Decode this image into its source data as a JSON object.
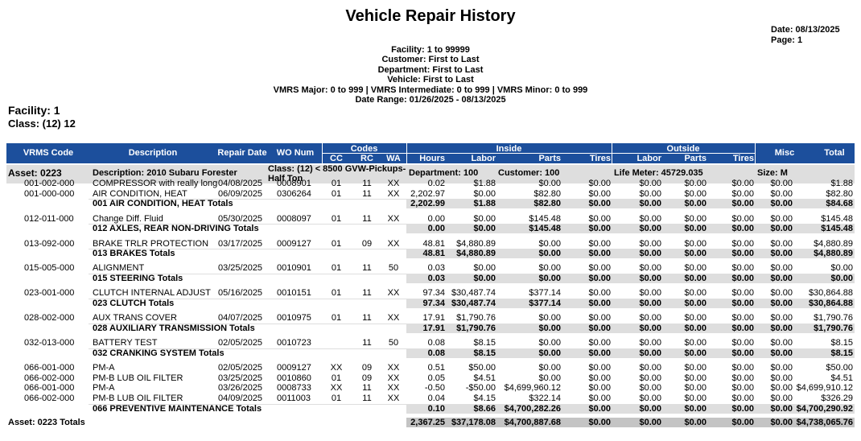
{
  "header": {
    "title": "Vehicle Repair History",
    "date": "Date: 08/13/2025",
    "page": "Page: 1",
    "parameters": [
      "Facility: 1 to 99999",
      "Customer: First to Last",
      "Department: First to Last",
      "Vehicle: First to Last",
      "VMRS Major: 0 to 999 | VMRS Intermediate: 0 to 999 | VMRS Minor: 0 to 999",
      "Date Range: 01/26/2025 - 08/13/2025"
    ]
  },
  "facility": "Facility: 1",
  "class": "Class: (12) 12",
  "table": {
    "single_headers": [
      "VRMS Code",
      "Description",
      "Repair Date",
      "WO Num",
      "Misc",
      "Total"
    ],
    "group_headers": [
      {
        "label": "Codes",
        "columns": [
          "CC",
          "RC",
          "WA"
        ]
      },
      {
        "label": "Inside",
        "columns": [
          "Hours",
          "Labor",
          "Parts",
          "Tires"
        ]
      },
      {
        "label": "Outside",
        "columns": [
          "Labor",
          "Parts",
          "Tires"
        ]
      }
    ],
    "asset": {
      "asset": "Asset: 0223",
      "description": "Description: 2010 Subaru Forester",
      "class": "Class: (12) < 8500 GVW-Pickups-Half Ton",
      "department": "Department: 100",
      "customer": "Customer: 100",
      "life_meter": "Life Meter: 45729.035",
      "size": "Size: M"
    },
    "groups": [
      {
        "rows": [
          [
            "001-002-000",
            "COMPRESSOR with really long",
            "04/08/2025",
            "0008901",
            "01",
            "11",
            "XX",
            "0.02",
            "$1.88",
            "$0.00",
            "$0.00",
            "$0.00",
            "$0.00",
            "$0.00",
            "$0.00",
            "$1.88"
          ],
          [
            "001-000-000",
            "AIR CONDITION, HEAT",
            "06/09/2025",
            "0306264",
            "01",
            "11",
            "XX",
            "2,202.97",
            "$0.00",
            "$82.80",
            "$0.00",
            "$0.00",
            "$0.00",
            "$0.00",
            "$0.00",
            "$82.80"
          ]
        ],
        "totals": {
          "label": "001 AIR CONDITION, HEAT Totals",
          "values": [
            "2,202.99",
            "$1.88",
            "$82.80",
            "$0.00",
            "$0.00",
            "$0.00",
            "$0.00",
            "$0.00",
            "$84.68"
          ]
        }
      },
      {
        "rows": [
          [
            "012-011-000",
            "Change Diff. Fluid",
            "05/30/2025",
            "0008097",
            "01",
            "11",
            "XX",
            "0.00",
            "$0.00",
            "$145.48",
            "$0.00",
            "$0.00",
            "$0.00",
            "$0.00",
            "$0.00",
            "$145.48"
          ]
        ],
        "totals": {
          "label": "012 AXLES, REAR NON-DRIVING Totals",
          "values": [
            "0.00",
            "$0.00",
            "$145.48",
            "$0.00",
            "$0.00",
            "$0.00",
            "$0.00",
            "$0.00",
            "$145.48"
          ]
        }
      },
      {
        "rows": [
          [
            "013-092-000",
            "BRAKE TRLR PROTECTION",
            "03/17/2025",
            "0009127",
            "01",
            "09",
            "XX",
            "48.81",
            "$4,880.89",
            "$0.00",
            "$0.00",
            "$0.00",
            "$0.00",
            "$0.00",
            "$0.00",
            "$4,880.89"
          ]
        ],
        "totals": {
          "label": "013 BRAKES Totals",
          "values": [
            "48.81",
            "$4,880.89",
            "$0.00",
            "$0.00",
            "$0.00",
            "$0.00",
            "$0.00",
            "$0.00",
            "$4,880.89"
          ]
        }
      },
      {
        "rows": [
          [
            "015-005-000",
            "ALIGNMENT",
            "03/25/2025",
            "0010901",
            "01",
            "11",
            "50",
            "0.03",
            "$0.00",
            "$0.00",
            "$0.00",
            "$0.00",
            "$0.00",
            "$0.00",
            "$0.00",
            "$0.00"
          ]
        ],
        "totals": {
          "label": "015 STEERING Totals",
          "values": [
            "0.03",
            "$0.00",
            "$0.00",
            "$0.00",
            "$0.00",
            "$0.00",
            "$0.00",
            "$0.00",
            "$0.00"
          ]
        }
      },
      {
        "rows": [
          [
            "023-001-000",
            "CLUTCH INTERNAL ADJUST",
            "05/16/2025",
            "0010151",
            "01",
            "11",
            "XX",
            "97.34",
            "$30,487.74",
            "$377.14",
            "$0.00",
            "$0.00",
            "$0.00",
            "$0.00",
            "$0.00",
            "$30,864.88"
          ]
        ],
        "totals": {
          "label": "023 CLUTCH Totals",
          "values": [
            "97.34",
            "$30,487.74",
            "$377.14",
            "$0.00",
            "$0.00",
            "$0.00",
            "$0.00",
            "$0.00",
            "$30,864.88"
          ]
        }
      },
      {
        "rows": [
          [
            "028-002-000",
            "AUX TRANS COVER",
            "04/07/2025",
            "0010975",
            "01",
            "11",
            "XX",
            "17.91",
            "$1,790.76",
            "$0.00",
            "$0.00",
            "$0.00",
            "$0.00",
            "$0.00",
            "$0.00",
            "$1,790.76"
          ]
        ],
        "totals": {
          "label": "028 AUXILIARY TRANSMISSION Totals",
          "values": [
            "17.91",
            "$1,790.76",
            "$0.00",
            "$0.00",
            "$0.00",
            "$0.00",
            "$0.00",
            "$0.00",
            "$1,790.76"
          ]
        }
      },
      {
        "rows": [
          [
            "032-013-000",
            "BATTERY TEST",
            "02/05/2025",
            "0010723",
            null,
            "11",
            "50",
            "0.08",
            "$8.15",
            "$0.00",
            "$0.00",
            "$0.00",
            "$0.00",
            "$0.00",
            "$0.00",
            "$8.15"
          ]
        ],
        "totals": {
          "label": "032 CRANKING SYSTEM Totals",
          "values": [
            "0.08",
            "$8.15",
            "$0.00",
            "$0.00",
            "$0.00",
            "$0.00",
            "$0.00",
            "$0.00",
            "$8.15"
          ]
        }
      },
      {
        "rows": [
          [
            "066-001-000",
            "PM-A",
            "02/05/2025",
            "0009127",
            "XX",
            "09",
            "XX",
            "0.51",
            "$50.00",
            "$0.00",
            "$0.00",
            "$0.00",
            "$0.00",
            "$0.00",
            "$0.00",
            "$50.00"
          ],
          [
            "066-002-000",
            "PM-B LUB OIL FILTER",
            "03/25/2025",
            "0010860",
            "01",
            "09",
            "XX",
            "0.05",
            "$4.51",
            "$0.00",
            "$0.00",
            "$0.00",
            "$0.00",
            "$0.00",
            "$0.00",
            "$4.51"
          ],
          [
            "066-001-000",
            "PM-A",
            "03/26/2025",
            "0008733",
            "XX",
            "11",
            "XX",
            "-0.50",
            "-$50.00",
            "$4,699,960.12",
            "$0.00",
            "$0.00",
            "$0.00",
            "$0.00",
            "$0.00",
            "$4,699,910.12"
          ],
          [
            "066-002-000",
            "PM-B LUB OIL FILTER",
            "04/09/2025",
            "0011003",
            "01",
            "11",
            "XX",
            "0.04",
            "$4.15",
            "$322.14",
            "$0.00",
            "$0.00",
            "$0.00",
            "$0.00",
            "$0.00",
            "$326.29"
          ]
        ],
        "totals": {
          "label": "066 PREVENTIVE MAINTENANCE Totals",
          "values": [
            "0.10",
            "$8.66",
            "$4,700,282.26",
            "$0.00",
            "$0.00",
            "$0.00",
            "$0.00",
            "$0.00",
            "$4,700,290.92"
          ]
        }
      }
    ],
    "grand_total": {
      "label": "Asset: 0223 Totals",
      "values": [
        "2,367.25",
        "$37,178.08",
        "$4,700,887.68",
        "$0.00",
        "$0.00",
        "$0.00",
        "$0.00",
        "$0.00",
        "$4,738,065.76"
      ]
    }
  }
}
